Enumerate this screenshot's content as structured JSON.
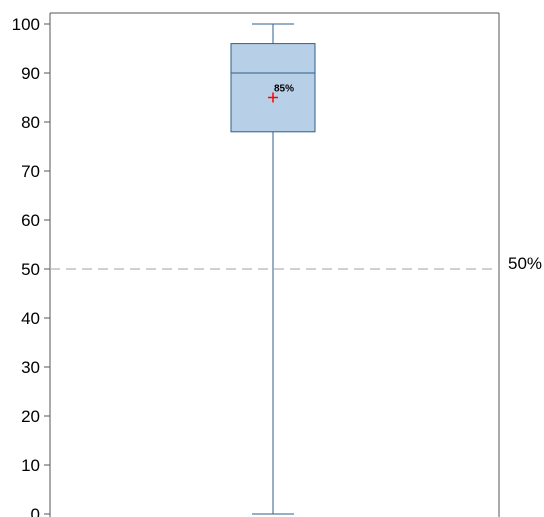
{
  "chart_data": {
    "type": "box",
    "ylim": [
      0,
      100
    ],
    "yticks": [
      0,
      10,
      20,
      30,
      40,
      50,
      60,
      70,
      80,
      90,
      100
    ],
    "grid": false,
    "box": {
      "whisker_low": 0,
      "q1": 78,
      "median": 90,
      "q3": 96,
      "whisker_high": 100,
      "mean": 85,
      "mean_label": "85%"
    },
    "reference_line": {
      "value": 50,
      "label": "50%",
      "style": "dashed"
    },
    "colors": {
      "box_fill": "#b8cfe8",
      "box_stroke": "#2f5f88",
      "mean_marker": "#ff0000",
      "reference_line": "#b4b4b4",
      "axis": "#555555"
    }
  }
}
